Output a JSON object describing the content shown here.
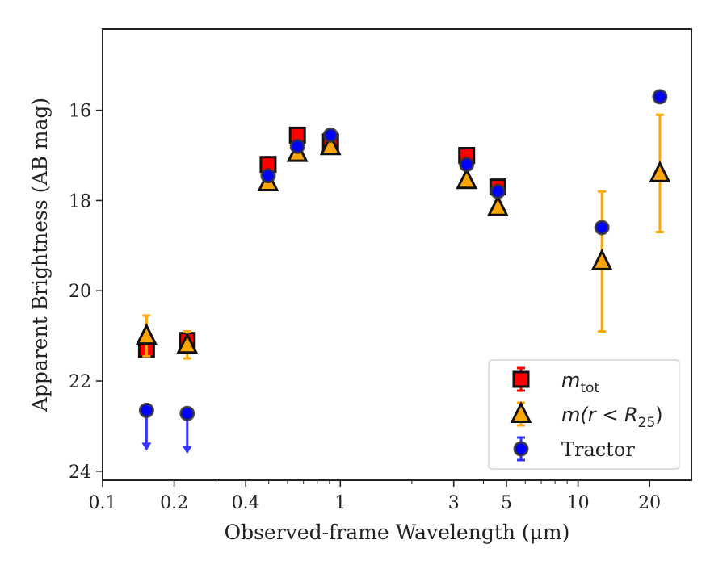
{
  "chart_data": {
    "type": "scatter",
    "title": "",
    "xlabel": "Observed-frame Wavelength (μm)",
    "ylabel": "Apparent Brightness (AB mag)",
    "x_scale": "log",
    "xlim": [
      0.1,
      30
    ],
    "ylim": [
      24.2,
      14.2
    ],
    "x_ticks": [
      0.1,
      0.2,
      0.4,
      1,
      3,
      5,
      10,
      20
    ],
    "x_tick_labels": [
      "0.1",
      "0.2",
      "0.4",
      "1",
      "3",
      "5",
      "10",
      "20"
    ],
    "y_ticks": [
      16,
      18,
      20,
      22,
      24
    ],
    "y_tick_labels": [
      "16",
      "18",
      "20",
      "22",
      "24"
    ],
    "y_inverted": true,
    "grid": false,
    "legend_position": "lower-right",
    "series": [
      {
        "name": "m_tot",
        "legend_label": {
          "main": "m",
          "sub": "tot"
        },
        "marker": "square",
        "color": "#ff0000",
        "edge_color": "#111111",
        "error_color": "#ff0000",
        "points": [
          {
            "x": 0.153,
            "y": 21.3
          },
          {
            "x": 0.227,
            "y": 21.1
          },
          {
            "x": 0.497,
            "y": 17.2
          },
          {
            "x": 0.66,
            "y": 16.55
          },
          {
            "x": 0.91,
            "y": 16.7
          },
          {
            "x": 3.4,
            "y": 17.0
          },
          {
            "x": 4.6,
            "y": 17.7
          }
        ]
      },
      {
        "name": "m(r < R_25)",
        "legend_label": {
          "main": "m(r < R",
          "sub": "25",
          "tail": ")"
        },
        "marker": "triangle",
        "color": "#ffa500",
        "edge_color": "#111111",
        "error_color": "#ffa500",
        "points": [
          {
            "x": 0.153,
            "y": 21.0,
            "err": 0.45
          },
          {
            "x": 0.227,
            "y": 21.2,
            "err": 0.3
          },
          {
            "x": 0.497,
            "y": 17.6
          },
          {
            "x": 0.66,
            "y": 16.95
          },
          {
            "x": 0.91,
            "y": 16.8
          },
          {
            "x": 3.4,
            "y": 17.55
          },
          {
            "x": 4.6,
            "y": 18.15
          },
          {
            "x": 12.6,
            "y": 19.35,
            "err": 1.55
          },
          {
            "x": 22.1,
            "y": 17.4,
            "err": 1.3
          }
        ]
      },
      {
        "name": "Tractor",
        "legend_label": {
          "main": "Tractor"
        },
        "marker": "circle",
        "color": "#0000ff",
        "edge_color": "#333333",
        "error_color": "#3333ff",
        "points": [
          {
            "x": 0.153,
            "y": 22.65,
            "upper_limit": true
          },
          {
            "x": 0.227,
            "y": 22.72,
            "upper_limit": true
          },
          {
            "x": 0.497,
            "y": 17.45
          },
          {
            "x": 0.66,
            "y": 16.8
          },
          {
            "x": 0.91,
            "y": 16.55
          },
          {
            "x": 3.4,
            "y": 17.2
          },
          {
            "x": 4.6,
            "y": 17.8
          },
          {
            "x": 12.6,
            "y": 18.6
          },
          {
            "x": 22.1,
            "y": 15.7
          }
        ]
      }
    ]
  }
}
